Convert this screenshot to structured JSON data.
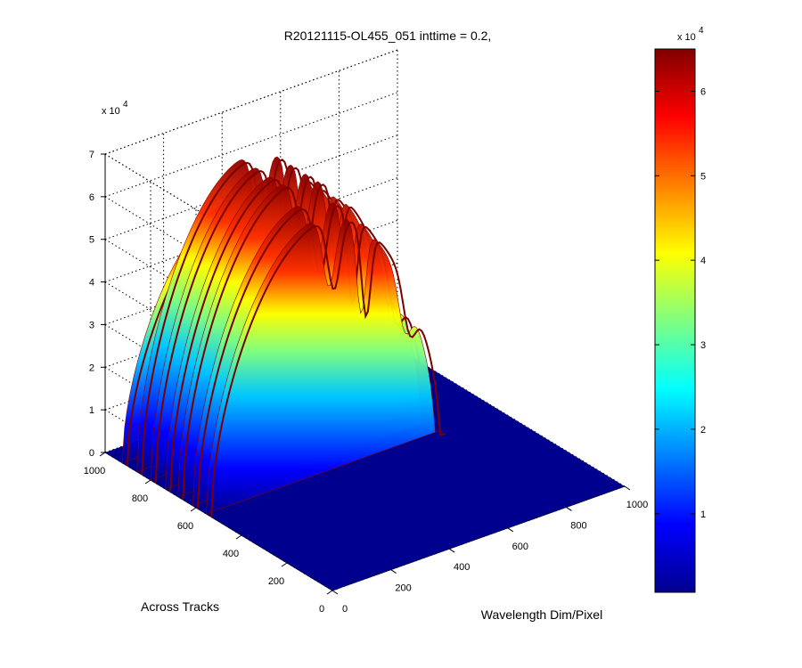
{
  "chart_data": {
    "type": "surface",
    "title": "R20121115-OL455_051 inttime = 0.2,",
    "xlabel": "Wavelength Dim/Pixel",
    "ylabel": "Across Tracks",
    "zlabel": "",
    "xlim": [
      0,
      1000
    ],
    "ylim": [
      0,
      1000
    ],
    "zlim": [
      0,
      70000
    ],
    "x_ticks": [
      "0",
      "200",
      "400",
      "600",
      "800",
      "1000"
    ],
    "y_ticks": [
      "0",
      "200",
      "400",
      "600",
      "800",
      "1000"
    ],
    "z_ticks": [
      "0",
      "1",
      "2",
      "3",
      "4",
      "5",
      "6",
      "7"
    ],
    "z_multiplier": "x 10",
    "z_multiplier_exp": "4",
    "colorbar": {
      "colormap": "jet",
      "range": [
        700,
        65000
      ],
      "ticks": [
        "1",
        "2",
        "3",
        "4",
        "5",
        "6"
      ],
      "tick_values": [
        10000,
        20000,
        30000,
        40000,
        50000,
        60000
      ],
      "multiplier": "x 10",
      "multiplier_exp": "4"
    },
    "grid": true,
    "slit_bands": [
      {
        "across_track": 925,
        "peak": 53000
      },
      {
        "across_track": 860,
        "peak": 65000
      },
      {
        "across_track": 800,
        "peak": 65000
      },
      {
        "across_track": 735,
        "peak": 65000
      },
      {
        "across_track": 680,
        "peak": 65000
      },
      {
        "across_track": 615,
        "peak": 62000
      },
      {
        "across_track": 555,
        "peak": 60000
      }
    ],
    "spectral_dips_pixel": [
      420,
      530,
      680
    ],
    "signal_pixel_range": [
      0,
      780
    ]
  }
}
